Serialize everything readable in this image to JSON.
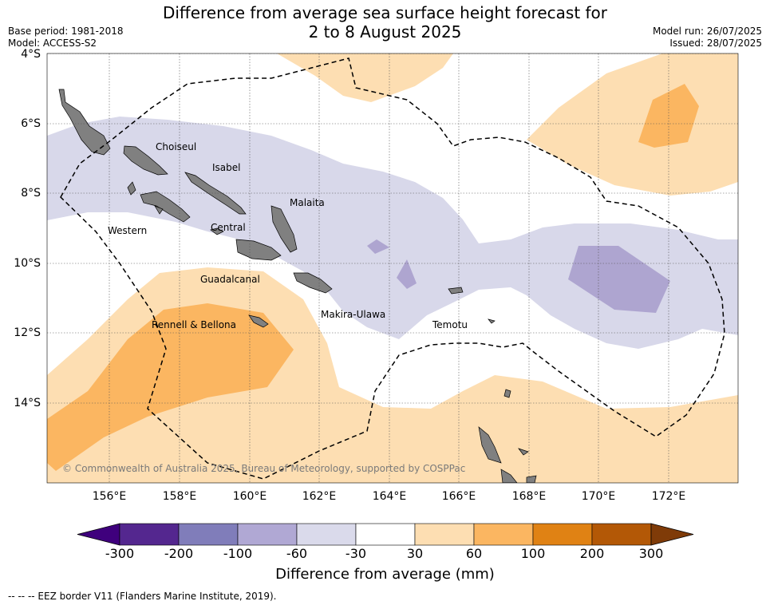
{
  "title_line1": "Difference from average sea surface height forecast for",
  "title_line2": "2 to 8 August 2025",
  "base_period": "Base period: 1981-2018",
  "model": "Model: ACCESS-S2",
  "model_run": "Model run: 26/07/2025",
  "issued": "Issued: 28/07/2025",
  "lat_ticks": [
    "4°S",
    "6°S",
    "8°S",
    "10°S",
    "12°S",
    "14°S"
  ],
  "lon_ticks": [
    "156°E",
    "158°E",
    "160°E",
    "162°E",
    "164°E",
    "166°E",
    "168°E",
    "170°E",
    "172°E"
  ],
  "places": {
    "choiseul": "Choiseul",
    "isabel": "Isabel",
    "malaita": "Malaita",
    "western": "Western",
    "central": "Central",
    "guadalcanal": "Guadalcanal",
    "makira": "Makira-Ulawa",
    "rennell": "Rennell & Bellona",
    "temotu": "Temotu"
  },
  "copyright": "© Commonwealth of Australia 2025, Bureau of Meteorology, supported by COSPPac",
  "colorbar": {
    "labels": [
      "-300",
      "-200",
      "-100",
      "-60",
      "-30",
      "30",
      "60",
      "100",
      "200",
      "300"
    ],
    "colors": [
      "#3f007d",
      "#54278f",
      "#807dba",
      "#b0a8d4",
      "#dadaeb",
      "#ffffff",
      "#fddeb2",
      "#fbb661",
      "#e08214",
      "#b35806",
      "#7f3b08"
    ],
    "title": "Difference from average (mm)"
  },
  "eez_note": "-- -- -- EEZ border V11 (Flanders Marine Institute, 2019)."
}
